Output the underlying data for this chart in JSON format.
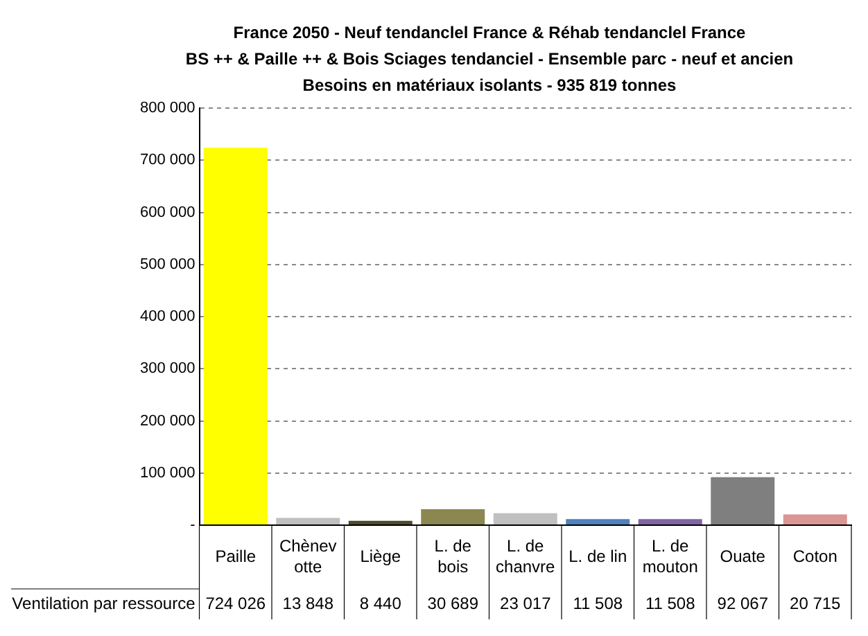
{
  "chart_data": {
    "type": "bar",
    "title": [
      "France 2050 - Neuf tendanclel France & Réhab tendanclel France",
      "BS ++ & Paille ++ & Bois Sciages tendanciel - Ensemble parc - neuf et ancien",
      "Besoins en matériaux isolants - 935 819 tonnes"
    ],
    "categories": [
      "Paille",
      "Chènevotte",
      "Liège",
      "L. de bois",
      "L. de chanvre",
      "L. de lin",
      "L. de mouton",
      "Ouate",
      "Coton"
    ],
    "series": [
      {
        "name": "Ventilation par ressource",
        "colors": [
          "#ffff00",
          "#c0c0c0",
          "#4f4a2c",
          "#8c8650",
          "#c0c0c0",
          "#4f81bd",
          "#8064a2",
          "#7f7f7f",
          "#d99694"
        ],
        "values": [
          724026,
          13848,
          8440,
          30689,
          23017,
          11508,
          11508,
          92067,
          20715
        ],
        "value_labels": [
          "724 026",
          "13 848",
          "8 440",
          "30 689",
          "23 017",
          "11 508",
          "11 508",
          "92 067",
          "20 715"
        ]
      }
    ],
    "ylim": [
      0,
      800000
    ],
    "yticks": [
      {
        "value": 0,
        "label": "-"
      },
      {
        "value": 100000,
        "label": "100 000"
      },
      {
        "value": 200000,
        "label": "200 000"
      },
      {
        "value": 300000,
        "label": "300 000"
      },
      {
        "value": 400000,
        "label": "400 000"
      },
      {
        "value": 500000,
        "label": "500 000"
      },
      {
        "value": 600000,
        "label": "600 000"
      },
      {
        "value": 700000,
        "label": "700 000"
      },
      {
        "value": 800000,
        "label": "800 000"
      }
    ],
    "grid": "y",
    "legend": false
  }
}
